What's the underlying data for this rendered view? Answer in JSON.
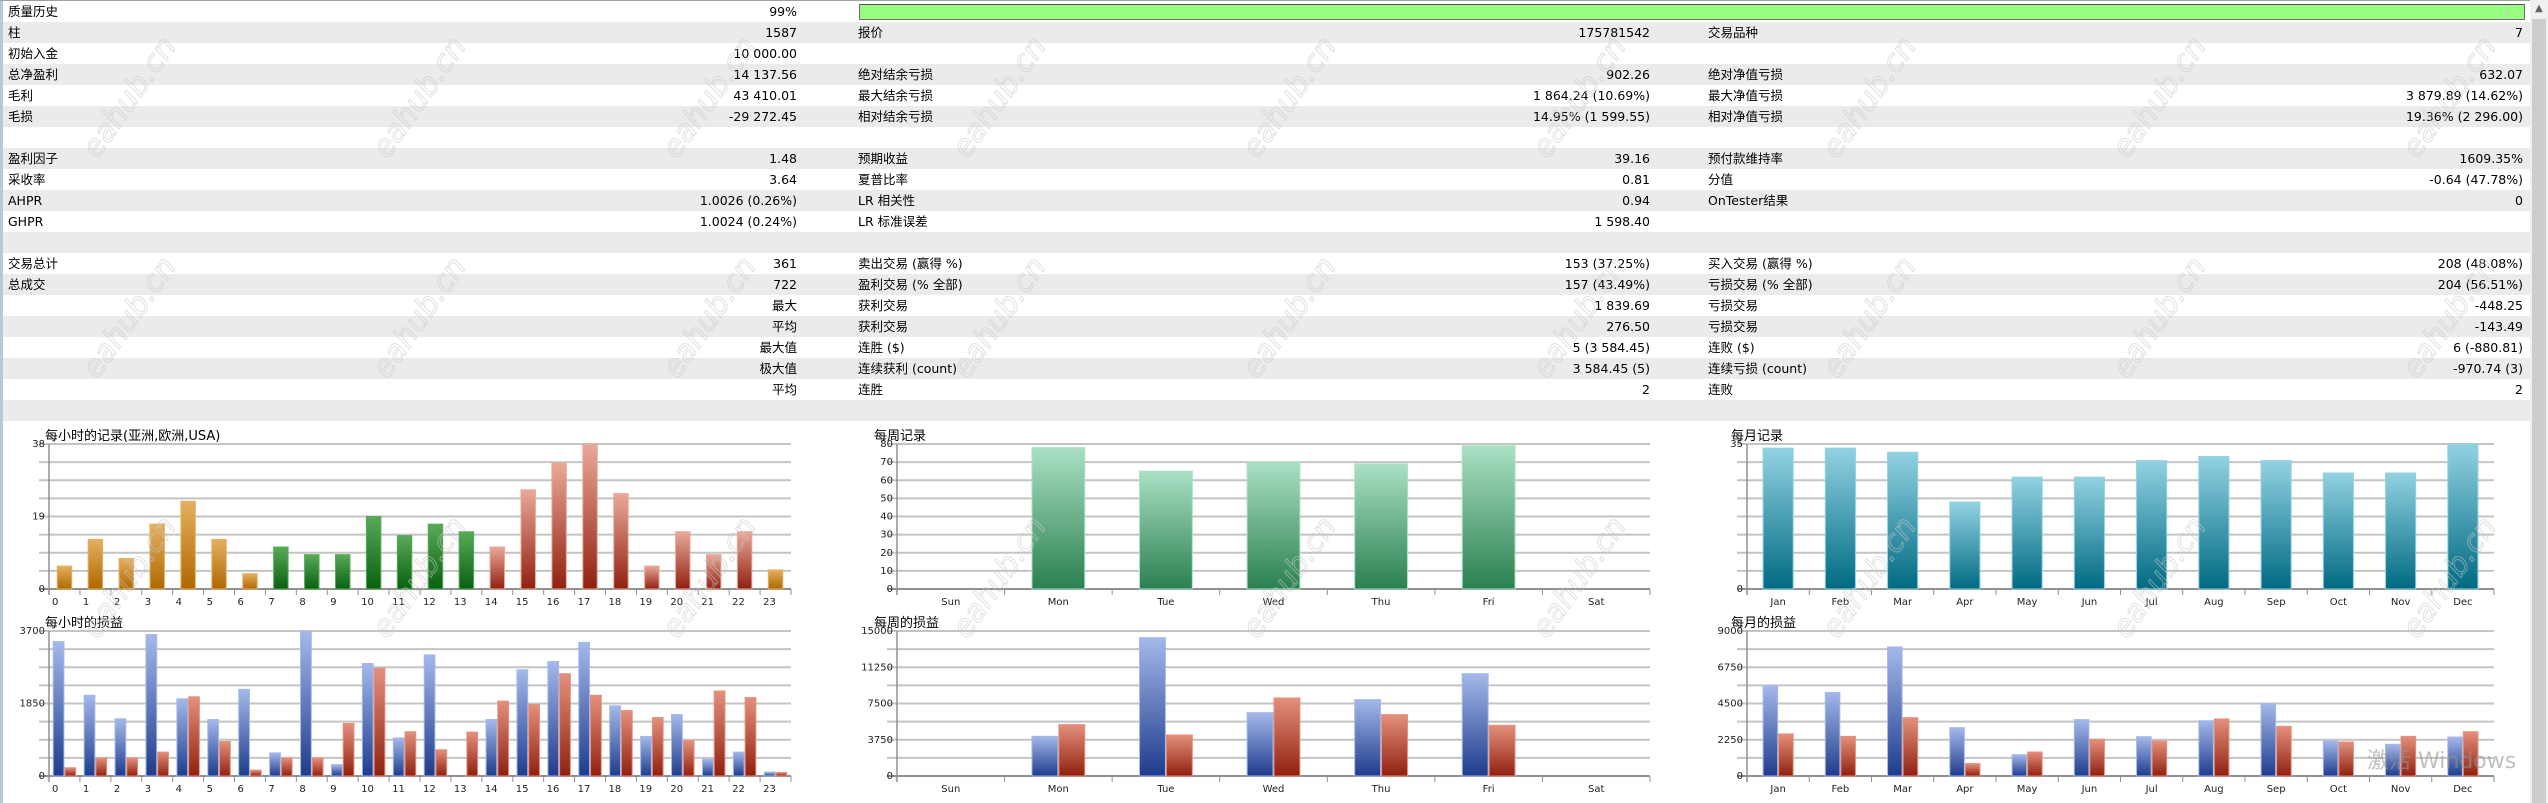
{
  "watermark": "eahub.cn",
  "os_overlay": "激活 Windows",
  "scrollbar": {
    "up_icon": "▲"
  },
  "stats": {
    "history_quality": {
      "label": "质量历史",
      "value": "99%",
      "fraction": 0.99
    },
    "rows": [
      [
        [
          "质量历史",
          "99%"
        ],
        null,
        null
      ],
      [
        [
          "柱",
          "1587"
        ],
        [
          "报价",
          "175781542"
        ],
        [
          "交易品种",
          "7"
        ]
      ],
      [
        [
          "初始入金",
          "10 000.00"
        ],
        null,
        null
      ],
      [
        [
          "总净盈利",
          "14 137.56"
        ],
        [
          "绝对结余亏损",
          "902.26"
        ],
        [
          "绝对净值亏损",
          "632.07"
        ]
      ],
      [
        [
          "毛利",
          "43 410.01"
        ],
        [
          "最大结余亏损",
          "1 864.24 (10.69%)"
        ],
        [
          "最大净值亏损",
          "3 879.89 (14.62%)"
        ]
      ],
      [
        [
          "毛损",
          "-29 272.45"
        ],
        [
          "相对结余亏损",
          "14.95% (1 599.55)"
        ],
        [
          "相对净值亏损",
          "19.36% (2 296.00)"
        ]
      ],
      [
        null,
        null,
        null
      ],
      [
        [
          "盈利因子",
          "1.48"
        ],
        [
          "预期收益",
          "39.16"
        ],
        [
          "预付款维持率",
          "1609.35%"
        ]
      ],
      [
        [
          "采收率",
          "3.64"
        ],
        [
          "夏普比率",
          "0.81"
        ],
        [
          "分值",
          "-0.64 (47.78%)"
        ]
      ],
      [
        [
          "AHPR",
          "1.0026 (0.26%)"
        ],
        [
          "LR 相关性",
          "0.94"
        ],
        [
          "OnTester结果",
          "0"
        ]
      ],
      [
        [
          "GHPR",
          "1.0024 (0.24%)"
        ],
        [
          "LR 标准误差",
          "1 598.40"
        ],
        null
      ],
      [
        null,
        null,
        null
      ],
      [
        [
          "交易总计",
          "361"
        ],
        [
          "卖出交易 (赢得 %)",
          "153 (37.25%)"
        ],
        [
          "买入交易 (赢得 %)",
          "208 (48.08%)"
        ]
      ],
      [
        [
          "总成交",
          "722"
        ],
        [
          "盈利交易 (% 全部)",
          "157 (43.49%)"
        ],
        [
          "亏损交易 (% 全部)",
          "204 (56.51%)"
        ]
      ],
      [
        [
          "",
          "最大"
        ],
        [
          "获利交易",
          "1 839.69"
        ],
        [
          "亏损交易",
          "-448.25"
        ]
      ],
      [
        [
          "",
          "平均"
        ],
        [
          "获利交易",
          "276.50"
        ],
        [
          "亏损交易",
          "-143.49"
        ]
      ],
      [
        [
          "",
          "最大值"
        ],
        [
          "连胜 ($)",
          "5 (3 584.45)"
        ],
        [
          "连败 ($)",
          "6 (-880.81)"
        ]
      ],
      [
        [
          "",
          "极大值"
        ],
        [
          "连续获利 (count)",
          "3 584.45 (5)"
        ],
        [
          "连续亏损 (count)",
          "-970.74 (3)"
        ]
      ],
      [
        [
          "",
          "平均"
        ],
        [
          "连胜",
          "2"
        ],
        [
          "连败",
          "2"
        ]
      ],
      [
        null,
        null,
        null
      ]
    ]
  },
  "chart_data": [
    {
      "id": "hourly-count",
      "type": "bar",
      "title": "每小时的记录(亚洲,欧洲,USA)",
      "categories": [
        "0",
        "1",
        "2",
        "3",
        "4",
        "5",
        "6",
        "7",
        "8",
        "9",
        "10",
        "11",
        "12",
        "13",
        "14",
        "15",
        "16",
        "17",
        "18",
        "19",
        "20",
        "21",
        "22",
        "23"
      ],
      "series": [
        {
          "name": "trades",
          "values": [
            6,
            13,
            8,
            17,
            23,
            13,
            4,
            11,
            9,
            9,
            19,
            14,
            17,
            15,
            11,
            26,
            33,
            38,
            25,
            6,
            15,
            9,
            15,
            5
          ]
        }
      ],
      "bar_colors": [
        "asia",
        "asia",
        "asia",
        "asia",
        "asia",
        "asia",
        "asia",
        "europe",
        "europe",
        "europe",
        "europe",
        "europe",
        "europe",
        "europe",
        "usa",
        "usa",
        "usa",
        "usa",
        "usa",
        "usa",
        "usa",
        "usa",
        "usa",
        "asia"
      ],
      "palette": {
        "asia": [
          "#e4b060",
          "#b06800"
        ],
        "europe": [
          "#58aa58",
          "#086010"
        ],
        "usa": [
          "#eaa898",
          "#902010"
        ]
      },
      "ylim": [
        0,
        38
      ],
      "yticks": [
        0,
        19,
        38
      ],
      "grid_divisions": 8,
      "grid": true
    },
    {
      "id": "hourly-pl",
      "type": "bar",
      "title": "每小时的损益",
      "categories": [
        "0",
        "1",
        "2",
        "3",
        "4",
        "5",
        "6",
        "7",
        "8",
        "9",
        "10",
        "11",
        "12",
        "13",
        "14",
        "15",
        "16",
        "17",
        "18",
        "19",
        "20",
        "21",
        "22",
        "23"
      ],
      "series": [
        {
          "name": "profit",
          "color": [
            "#a4b8ea",
            "#1e3c8c"
          ],
          "values": [
            3430,
            2060,
            1460,
            3610,
            1970,
            1440,
            2210,
            590,
            3690,
            290,
            2870,
            970,
            3090,
            0,
            1440,
            2710,
            2920,
            3410,
            1790,
            1010,
            1570,
            430,
            610,
            100
          ]
        },
        {
          "name": "loss",
          "color": [
            "#e4907c",
            "#902010"
          ],
          "values": [
            210,
            460,
            460,
            610,
            2020,
            880,
            150,
            460,
            460,
            1340,
            2750,
            1130,
            670,
            1120,
            1910,
            1820,
            2610,
            2060,
            1670,
            1490,
            900,
            2170,
            2000,
            90
          ]
        }
      ],
      "ylim": [
        0,
        3700
      ],
      "yticks": [
        0,
        1850,
        3700
      ],
      "grid_divisions": 8,
      "grid": true
    },
    {
      "id": "weekly-count",
      "type": "bar",
      "title": "每周记录",
      "categories": [
        "Sun",
        "Mon",
        "Tue",
        "Wed",
        "Thu",
        "Fri",
        "Sat"
      ],
      "series": [
        {
          "name": "trades",
          "color": [
            "#aae0c4",
            "#2a8050"
          ],
          "values": [
            0,
            78,
            65,
            70,
            69,
            79,
            0
          ]
        }
      ],
      "ylim": [
        0,
        80
      ],
      "yticks": [
        0,
        10,
        20,
        30,
        40,
        50,
        60,
        70,
        80
      ],
      "grid_divisions": 8,
      "grid": true
    },
    {
      "id": "weekly-pl",
      "type": "bar",
      "title": "每周的损益",
      "categories": [
        "Sun",
        "Mon",
        "Tue",
        "Wed",
        "Thu",
        "Fri",
        "Sat"
      ],
      "series": [
        {
          "name": "profit",
          "color": [
            "#a4b8ea",
            "#1e3c8c"
          ],
          "values": [
            0,
            4100,
            14310,
            6550,
            7900,
            10590,
            0
          ]
        },
        {
          "name": "loss",
          "color": [
            "#e4907c",
            "#902010"
          ],
          "values": [
            0,
            5310,
            4240,
            8070,
            6350,
            5240,
            0
          ]
        }
      ],
      "ylim": [
        0,
        15000
      ],
      "yticks": [
        0,
        3750,
        7500,
        11250,
        15000
      ],
      "grid_divisions": 8,
      "grid": true
    },
    {
      "id": "monthly-count",
      "type": "bar",
      "title": "每月记录",
      "categories": [
        "Jan",
        "Feb",
        "Mar",
        "Apr",
        "May",
        "Jun",
        "Jul",
        "Aug",
        "Sep",
        "Oct",
        "Nov",
        "Dec"
      ],
      "series": [
        {
          "name": "trades",
          "color": [
            "#92d2e2",
            "#006a82"
          ],
          "values": [
            34,
            34,
            33,
            21,
            27,
            27,
            31,
            32,
            31,
            28,
            28,
            35
          ]
        }
      ],
      "ylim": [
        0,
        35
      ],
      "yticks": [
        0,
        35
      ],
      "grid_divisions": 8,
      "grid": true
    },
    {
      "id": "monthly-pl",
      "type": "bar",
      "title": "每月的损益",
      "categories": [
        "Jan",
        "Feb",
        "Mar",
        "Apr",
        "May",
        "Jun",
        "Jul",
        "Aug",
        "Sep",
        "Oct",
        "Nov",
        "Dec"
      ],
      "series": [
        {
          "name": "profit",
          "color": [
            "#a4b8ea",
            "#1e3c8c"
          ],
          "values": [
            5590,
            5190,
            8010,
            3000,
            1320,
            3500,
            2440,
            3430,
            4490,
            2170,
            1970,
            2420
          ]
        },
        {
          "name": "loss",
          "color": [
            "#e4907c",
            "#902010"
          ],
          "values": [
            2610,
            2460,
            3620,
            770,
            1490,
            2280,
            2170,
            3540,
            3080,
            2110,
            2460,
            2750
          ]
        }
      ],
      "ylim": [
        0,
        9000
      ],
      "yticks": [
        0,
        2250,
        4500,
        6750,
        9000
      ],
      "grid_divisions": 8,
      "grid": true
    }
  ]
}
